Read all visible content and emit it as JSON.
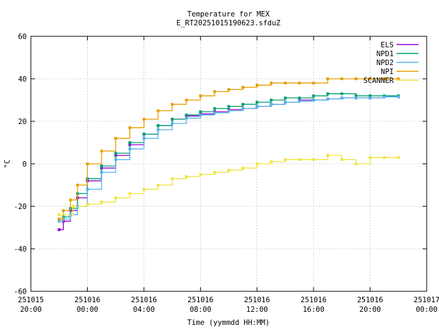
{
  "chart_data": {
    "type": "line",
    "title": "Temperature for MEX",
    "subtitle": "E_RT20251015190623.sfduZ",
    "xlabel": "Time (yymmdd HH:MM)",
    "ylabel": "°C",
    "grid": true,
    "legend_position": "top-right",
    "x_range": [
      "2025-10-15 20:00",
      "2025-10-17 00:00"
    ],
    "ylim": [
      -60,
      60
    ],
    "y_ticks": [
      "60",
      "40",
      "20",
      "0",
      "-20",
      "-40",
      "-60"
    ],
    "x_ticks": [
      {
        "date": "251015",
        "time": "20:00",
        "hours": 20
      },
      {
        "date": "251016",
        "time": "00:00",
        "hours": 24
      },
      {
        "date": "251016",
        "time": "04:00",
        "hours": 28
      },
      {
        "date": "251016",
        "time": "08:00",
        "hours": 32
      },
      {
        "date": "251016",
        "time": "12:00",
        "hours": 36
      },
      {
        "date": "251016",
        "time": "16:00",
        "hours": 40
      },
      {
        "date": "251016",
        "time": "20:00",
        "hours": 44
      },
      {
        "date": "251017",
        "time": "00:00",
        "hours": 48
      }
    ],
    "series": [
      {
        "name": "ELS",
        "color": "#9400d3",
        "x": [
          22.0,
          22.3,
          22.8,
          23.3,
          24.0,
          25.0,
          26.0,
          27.0,
          28.0,
          29.0,
          30.0,
          31.0,
          32.0,
          33.0,
          34.0,
          35.0,
          36.0,
          37.0,
          38.0,
          39.0,
          40.0,
          41.0,
          42.0,
          43.0,
          44.0,
          45.0,
          46.0
        ],
        "y": [
          -31,
          -27,
          -22,
          -16,
          -8,
          -2,
          4,
          9,
          14,
          18,
          21,
          22.5,
          23.5,
          24.5,
          25.5,
          26,
          27,
          28,
          29,
          30,
          30,
          30.5,
          31,
          31,
          31,
          31.5,
          31.5
        ]
      },
      {
        "name": "NPD1",
        "color": "#009e73",
        "x": [
          22.0,
          22.3,
          22.8,
          23.3,
          24.0,
          25.0,
          26.0,
          27.0,
          28.0,
          29.0,
          30.0,
          31.0,
          32.0,
          33.0,
          34.0,
          35.0,
          36.0,
          37.0,
          38.0,
          39.0,
          40.0,
          41.0,
          42.0,
          43.0,
          44.0,
          45.0,
          46.0
        ],
        "y": [
          -26,
          -25,
          -21,
          -14,
          -7,
          -1,
          5,
          10,
          14,
          18,
          21,
          23,
          24.5,
          26,
          27,
          28,
          29,
          30,
          31,
          31,
          32,
          33,
          33,
          32,
          32,
          32,
          32
        ]
      },
      {
        "name": "NPD2",
        "color": "#56b4e9",
        "x": [
          22.0,
          22.3,
          22.8,
          23.3,
          24.0,
          25.0,
          26.0,
          27.0,
          28.0,
          29.0,
          30.0,
          31.0,
          32.0,
          33.0,
          34.0,
          35.0,
          36.0,
          37.0,
          38.0,
          39.0,
          40.0,
          41.0,
          42.0,
          43.0,
          44.0,
          45.0,
          46.0
        ],
        "y": [
          -27,
          -26,
          -24,
          -20,
          -12,
          -4,
          2,
          7,
          12,
          16,
          19,
          21.5,
          23,
          24,
          25,
          26,
          27,
          28,
          29,
          29.5,
          30,
          30.5,
          31,
          31,
          31,
          31.5,
          31.5
        ]
      },
      {
        "name": "NPI",
        "color": "#e69f00",
        "x": [
          22.0,
          22.3,
          22.8,
          23.3,
          24.0,
          25.0,
          26.0,
          27.0,
          28.0,
          29.0,
          30.0,
          31.0,
          32.0,
          33.0,
          34.0,
          35.0,
          36.0,
          37.0,
          38.0,
          39.0,
          40.0,
          41.0,
          42.0,
          43.0,
          44.0,
          45.0,
          46.0
        ],
        "y": [
          -26,
          -22,
          -17,
          -10,
          0,
          6,
          12,
          17,
          21,
          25,
          28,
          30,
          32,
          34,
          35,
          36,
          37,
          38,
          38,
          38,
          38,
          40,
          40,
          40,
          40,
          40,
          40
        ]
      },
      {
        "name": "SCANNER",
        "color": "#f0e442",
        "x": [
          22.0,
          23.0,
          24.0,
          25.0,
          26.0,
          27.0,
          28.0,
          29.0,
          30.0,
          31.0,
          32.0,
          33.0,
          34.0,
          35.0,
          36.0,
          37.0,
          38.0,
          39.0,
          40.0,
          41.0,
          42.0,
          43.0,
          44.0,
          45.0,
          46.0
        ],
        "y": [
          -24,
          -20,
          -19,
          -18,
          -16,
          -14,
          -12,
          -10,
          -7,
          -6,
          -5,
          -4,
          -3,
          -2,
          0,
          1,
          2,
          2,
          2,
          4,
          2,
          0,
          3,
          3,
          3
        ]
      }
    ]
  }
}
